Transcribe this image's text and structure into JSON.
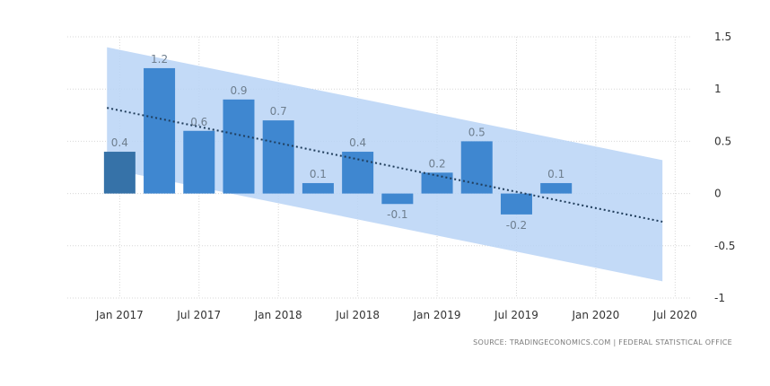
{
  "chart_data": {
    "type": "bar",
    "x": [
      2017.0,
      2017.25,
      2017.5,
      2017.75,
      2018.0,
      2018.25,
      2018.5,
      2018.75,
      2019.0,
      2019.25,
      2019.5,
      2019.75
    ],
    "values": [
      0.4,
      1.2,
      0.6,
      0.9,
      0.7,
      0.1,
      0.4,
      -0.1,
      0.2,
      0.5,
      -0.2,
      0.1
    ],
    "data_labels": [
      "0.4",
      "1.2",
      "0.6",
      "0.9",
      "0.7",
      "0.1",
      "0.4",
      "-0.1",
      "0.2",
      "0.5",
      "-0.2",
      "0.1"
    ],
    "x_ticks": [
      {
        "value": 2017.0,
        "label": "Jan 2017"
      },
      {
        "value": 2017.5,
        "label": "Jul 2017"
      },
      {
        "value": 2018.0,
        "label": "Jan 2018"
      },
      {
        "value": 2018.5,
        "label": "Jul 2018"
      },
      {
        "value": 2019.0,
        "label": "Jan 2019"
      },
      {
        "value": 2019.5,
        "label": "Jul 2019"
      },
      {
        "value": 2020.0,
        "label": "Jan 2020"
      },
      {
        "value": 2020.5,
        "label": "Jul 2020"
      }
    ],
    "y_ticks": [
      {
        "value": 1.5,
        "label": "1.5"
      },
      {
        "value": 1,
        "label": "1"
      },
      {
        "value": 0.5,
        "label": "0.5"
      },
      {
        "value": 0,
        "label": "0"
      },
      {
        "value": -0.5,
        "label": "-0.5"
      },
      {
        "value": -1,
        "label": "-1"
      }
    ],
    "ylim": [
      -1,
      1.5
    ],
    "xlim": [
      2016.67,
      2020.6
    ],
    "trend": {
      "x_start": 2016.92,
      "y_start": 0.82,
      "x_end": 2020.42,
      "y_end": -0.27
    },
    "forecast_band": {
      "x_start": 2016.92,
      "upper_start": 1.4,
      "lower_start": 0.24,
      "x_end": 2020.42,
      "upper_end": 0.32,
      "lower_end": -0.84
    },
    "grid": true,
    "colors": {
      "bar": "#3f87d0",
      "bar_dark": "#3672a8",
      "band": "#b8d4f6",
      "trend": "#1f3c5a",
      "grid": "#d7d7d7"
    }
  },
  "source_text": "SOURCE: TRADINGECONOMICS.COM | FEDERAL STATISTICAL OFFICE"
}
